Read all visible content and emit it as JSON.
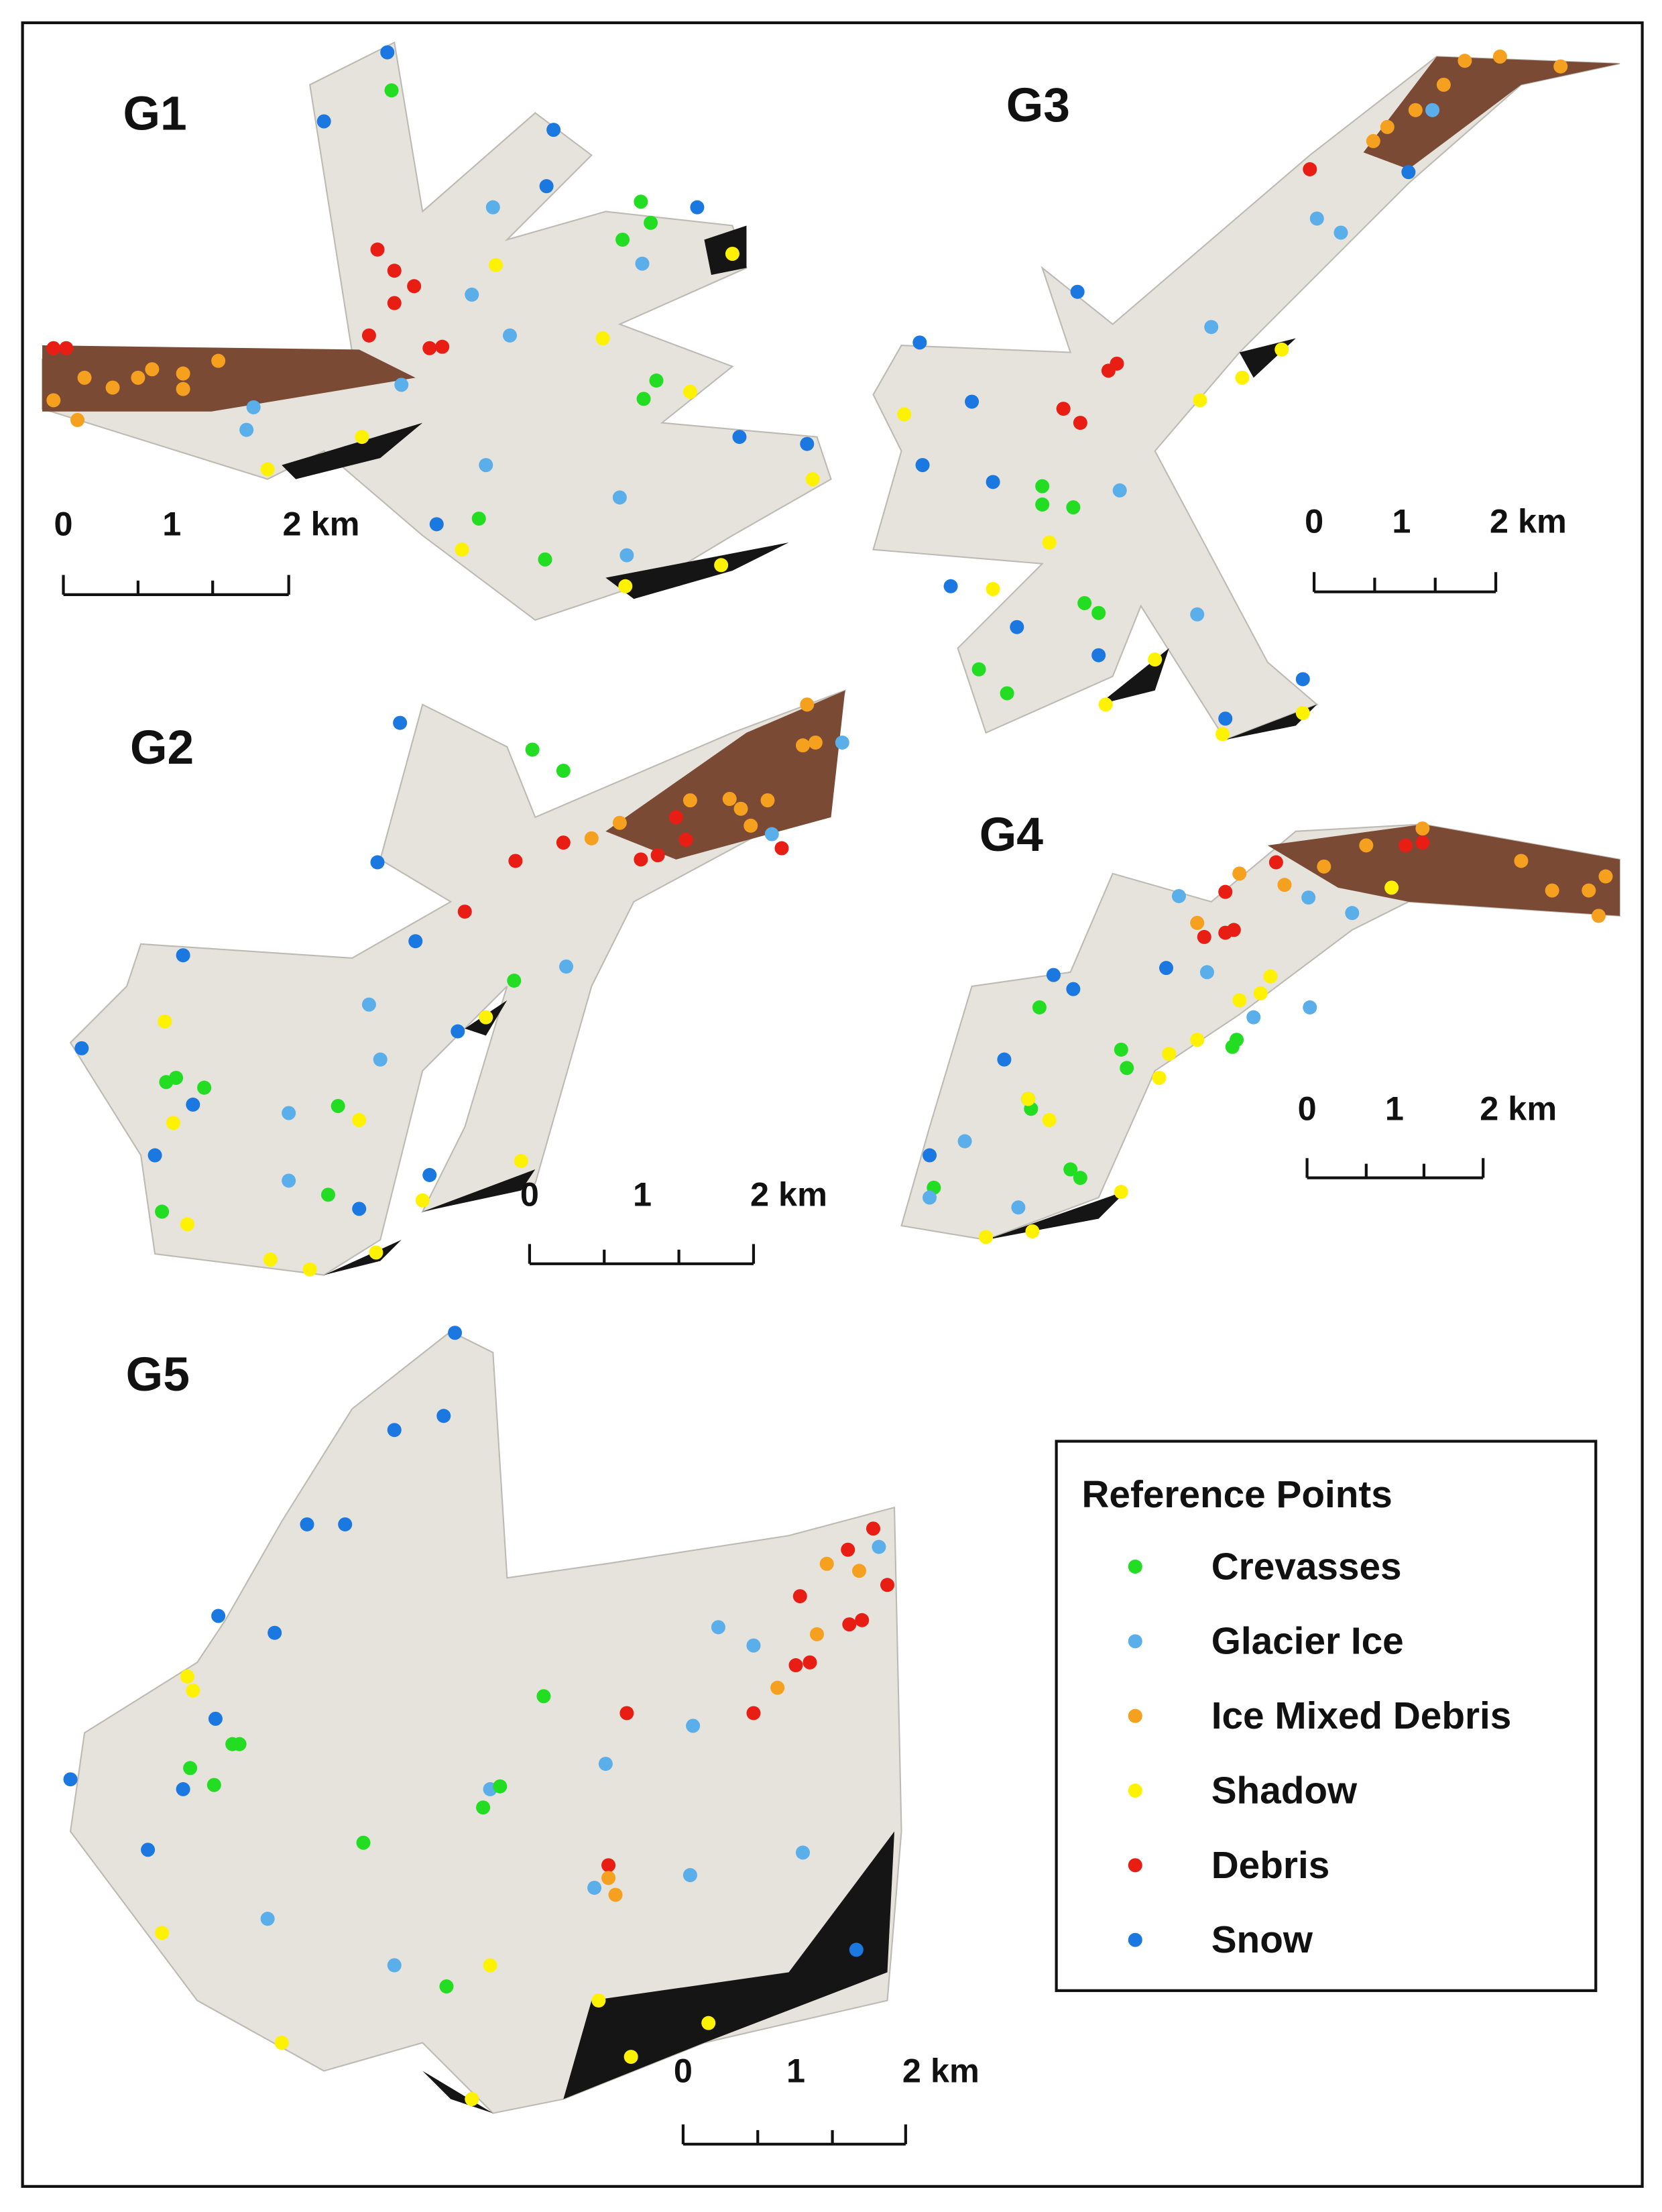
{
  "panels": [
    {
      "label": "G1",
      "scale": [
        "0",
        "1",
        "2 km"
      ]
    },
    {
      "label": "G3",
      "scale": [
        "0",
        "1",
        "2 km"
      ]
    },
    {
      "label": "G2",
      "scale": [
        "0",
        "1",
        "2 km"
      ]
    },
    {
      "label": "G4",
      "scale": [
        "0",
        "1",
        "2 km"
      ]
    },
    {
      "label": "G5",
      "scale": [
        "0",
        "1",
        "2 km"
      ]
    }
  ],
  "legend": {
    "title": "Reference Points",
    "items": [
      {
        "label": "Crevasses",
        "color": "#22dd22"
      },
      {
        "label": "Glacier Ice",
        "color": "#5aaeea"
      },
      {
        "label": "Ice Mixed Debris",
        "color": "#f5a01e"
      },
      {
        "label": "Shadow",
        "color": "#fff200"
      },
      {
        "label": "Debris",
        "color": "#e81e14"
      },
      {
        "label": "Snow",
        "color": "#1a78e0"
      }
    ]
  }
}
